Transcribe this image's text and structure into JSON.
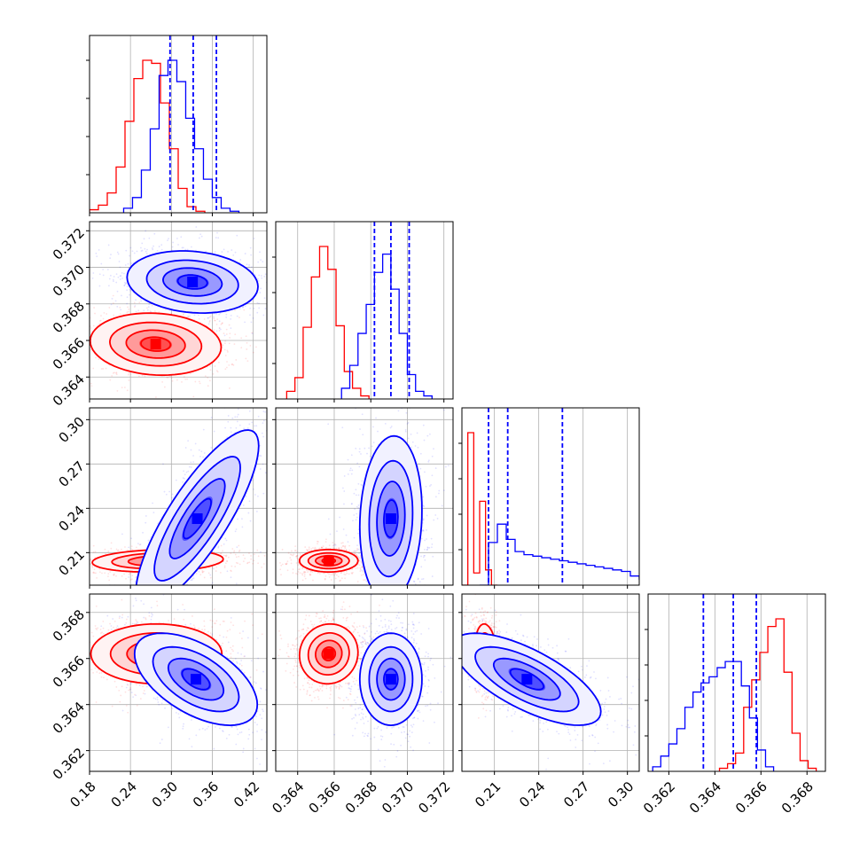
{
  "chart_data": {
    "type": "corner",
    "grid": true,
    "colors": {
      "red": "#ff0000",
      "blue": "#0000ff"
    },
    "parameters": [
      {
        "range": [
          0.18,
          0.44
        ],
        "ticks": [
          "0.18",
          "0.24",
          "0.30",
          "0.36",
          "0.42"
        ],
        "tick_values": [
          0.18,
          0.24,
          0.3,
          0.36,
          0.42
        ]
      },
      {
        "range": [
          0.3628,
          0.3725
        ],
        "ticks": [
          "0.364",
          "0.366",
          "0.368",
          "0.370",
          "0.372"
        ],
        "tick_values": [
          0.364,
          0.366,
          0.368,
          0.37,
          0.372
        ]
      },
      {
        "range": [
          0.188,
          0.308
        ],
        "ticks": [
          "0.21",
          "0.24",
          "0.27",
          "0.30"
        ],
        "tick_values": [
          0.21,
          0.24,
          0.27,
          0.3
        ]
      },
      {
        "range": [
          0.3611,
          0.3688
        ],
        "ticks": [
          "0.362",
          "0.364",
          "0.366",
          "0.368"
        ],
        "tick_values": [
          0.362,
          0.364,
          0.366,
          0.368
        ]
      }
    ],
    "histograms": [
      {
        "red": {
          "edges_start": 0.18,
          "bin_width": 0.013,
          "counts": [
            0.02,
            0.05,
            0.13,
            0.3,
            0.6,
            0.88,
            1.0,
            0.98,
            0.72,
            0.42,
            0.16,
            0.04,
            0.01
          ]
        },
        "blue": {
          "edges_start": 0.23,
          "bin_width": 0.013,
          "counts": [
            0.03,
            0.1,
            0.28,
            0.55,
            0.9,
            1.0,
            0.86,
            0.62,
            0.42,
            0.22,
            0.1,
            0.03,
            0.01
          ]
        },
        "quantiles": [
          0.298,
          0.332,
          0.366
        ]
      },
      {
        "red": {
          "edges_start": 0.3634,
          "bin_width": 0.00045,
          "counts": [
            0.05,
            0.14,
            0.47,
            0.8,
            1.0,
            0.85,
            0.48,
            0.18,
            0.07,
            0.02
          ]
        },
        "blue": {
          "edges_start": 0.3664,
          "bin_width": 0.00045,
          "counts": [
            0.07,
            0.22,
            0.43,
            0.62,
            0.83,
            0.95,
            0.72,
            0.43,
            0.16,
            0.05,
            0.02
          ]
        },
        "quantiles": [
          0.3682,
          0.3691,
          0.3701
        ]
      },
      {
        "red": {
          "edges_start": 0.188,
          "bin_width": 0.004,
          "counts": [
            0.0,
            1.0,
            0.08,
            0.55,
            0.1,
            0.0
          ]
        },
        "blue": {
          "edges_start": 0.2,
          "bin_width": 0.006,
          "counts": [
            0.0,
            0.28,
            0.4,
            0.3,
            0.22,
            0.2,
            0.19,
            0.18,
            0.17,
            0.16,
            0.15,
            0.14,
            0.13,
            0.12,
            0.11,
            0.1,
            0.09,
            0.06,
            0.04
          ]
        },
        "quantiles": [
          0.206,
          0.219,
          0.256
        ]
      },
      {
        "red": {
          "edges_start": 0.3642,
          "bin_width": 0.00035,
          "counts": [
            0.02,
            0.05,
            0.12,
            0.42,
            0.6,
            0.78,
            0.95,
            1.0,
            0.65,
            0.25,
            0.07,
            0.02
          ]
        },
        "blue": {
          "edges_start": 0.3613,
          "bin_width": 0.00035,
          "counts": [
            0.03,
            0.1,
            0.18,
            0.28,
            0.42,
            0.52,
            0.58,
            0.62,
            0.68,
            0.72,
            0.72,
            0.56,
            0.35,
            0.14,
            0.03
          ]
        },
        "quantiles": [
          0.3635,
          0.3648,
          0.3658
        ]
      }
    ],
    "contours": [
      {
        "row": 1,
        "col": 0,
        "red": {
          "center": [
            0.277,
            0.3658
          ],
          "spread": [
            0.048,
            0.00085
          ],
          "rho": -0.1
        },
        "blue": {
          "center": [
            0.331,
            0.3692
          ],
          "spread": [
            0.048,
            0.00085
          ],
          "rho": -0.15
        }
      },
      {
        "row": 2,
        "col": 0,
        "red": {
          "center": [
            0.28,
            0.2045
          ],
          "spread": [
            0.048,
            0.0038
          ],
          "rho": 0.15
        },
        "blue": {
          "center": [
            0.338,
            0.233
          ],
          "spread": [
            0.045,
            0.03
          ],
          "rho": 0.82
        }
      },
      {
        "row": 2,
        "col": 1,
        "red": {
          "center": [
            0.3657,
            0.2045
          ],
          "spread": [
            0.0008,
            0.0038
          ],
          "rho": 0.0
        },
        "blue": {
          "center": [
            0.3691,
            0.233
          ],
          "spread": [
            0.00085,
            0.028
          ],
          "rho": 0.1
        }
      },
      {
        "row": 3,
        "col": 0,
        "red": {
          "center": [
            0.278,
            0.3662
          ],
          "spread": [
            0.048,
            0.00065
          ],
          "rho": 0.0
        },
        "blue": {
          "center": [
            0.336,
            0.3651
          ],
          "spread": [
            0.045,
            0.001
          ],
          "rho": -0.55
        }
      },
      {
        "row": 3,
        "col": 1,
        "red": {
          "center": [
            0.3657,
            0.3662
          ],
          "spread": [
            0.0008,
            0.00065
          ],
          "rho": 0.05
        },
        "blue": {
          "center": [
            0.3691,
            0.3651
          ],
          "spread": [
            0.00085,
            0.001
          ],
          "rho": 0.0
        }
      },
      {
        "row": 3,
        "col": 2,
        "red": {
          "center": [
            0.2045,
            0.3662
          ],
          "spread": [
            0.0038,
            0.00065
          ],
          "rho": -0.2
        },
        "blue": {
          "center": [
            0.232,
            0.3651
          ],
          "spread": [
            0.025,
            0.001
          ],
          "rho": -0.7
        }
      }
    ]
  }
}
